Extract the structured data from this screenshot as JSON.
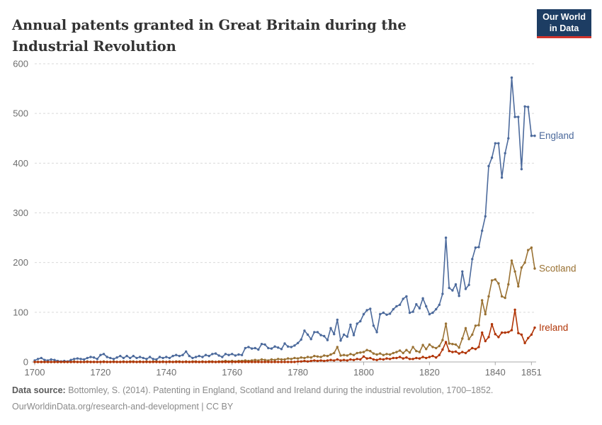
{
  "header": {
    "title": "Annual patents granted in Great Britain during the Industrial Revolution",
    "logo": {
      "line1": "Our World",
      "line2": "in Data"
    }
  },
  "chart_data": {
    "type": "line",
    "title": "Annual patents granted in Great Britain during the Industrial Revolution",
    "xlabel": "",
    "ylabel": "",
    "xlim": [
      1700,
      1852
    ],
    "ylim": [
      0,
      600
    ],
    "grid": "dashed-horizontal",
    "legend": "end-of-line-labels",
    "point_markers": true,
    "yticks": [
      0,
      100,
      200,
      300,
      400,
      500,
      600
    ],
    "xticks": [
      1700,
      1720,
      1740,
      1760,
      1780,
      1800,
      1820,
      1840,
      1851
    ],
    "x": [
      1700,
      1701,
      1702,
      1703,
      1704,
      1705,
      1706,
      1707,
      1708,
      1709,
      1710,
      1711,
      1712,
      1713,
      1714,
      1715,
      1716,
      1717,
      1718,
      1719,
      1720,
      1721,
      1722,
      1723,
      1724,
      1725,
      1726,
      1727,
      1728,
      1729,
      1730,
      1731,
      1732,
      1733,
      1734,
      1735,
      1736,
      1737,
      1738,
      1739,
      1740,
      1741,
      1742,
      1743,
      1744,
      1745,
      1746,
      1747,
      1748,
      1749,
      1750,
      1751,
      1752,
      1753,
      1754,
      1755,
      1756,
      1757,
      1758,
      1759,
      1760,
      1761,
      1762,
      1763,
      1764,
      1765,
      1766,
      1767,
      1768,
      1769,
      1770,
      1771,
      1772,
      1773,
      1774,
      1775,
      1776,
      1777,
      1778,
      1779,
      1780,
      1781,
      1782,
      1783,
      1784,
      1785,
      1786,
      1787,
      1788,
      1789,
      1790,
      1791,
      1792,
      1793,
      1794,
      1795,
      1796,
      1797,
      1798,
      1799,
      1800,
      1801,
      1802,
      1803,
      1804,
      1805,
      1806,
      1807,
      1808,
      1809,
      1810,
      1811,
      1812,
      1813,
      1814,
      1815,
      1816,
      1817,
      1818,
      1819,
      1820,
      1821,
      1822,
      1823,
      1824,
      1825,
      1826,
      1827,
      1828,
      1829,
      1830,
      1831,
      1832,
      1833,
      1834,
      1835,
      1836,
      1837,
      1838,
      1839,
      1840,
      1841,
      1842,
      1843,
      1844,
      1845,
      1846,
      1847,
      1848,
      1849,
      1850,
      1851,
      1852
    ],
    "series": [
      {
        "name": "England",
        "color": "#4C6A9C",
        "values": [
          3,
          6,
          8,
          4,
          3,
          5,
          4,
          2,
          1,
          2,
          1,
          4,
          6,
          7,
          6,
          5,
          8,
          10,
          9,
          6,
          14,
          16,
          10,
          8,
          6,
          9,
          12,
          8,
          12,
          8,
          12,
          8,
          10,
          8,
          6,
          10,
          6,
          5,
          10,
          8,
          10,
          8,
          12,
          14,
          12,
          14,
          21,
          12,
          8,
          10,
          12,
          10,
          14,
          12,
          16,
          17,
          13,
          10,
          16,
          14,
          16,
          13,
          15,
          14,
          28,
          30,
          27,
          28,
          25,
          36,
          35,
          28,
          27,
          31,
          29,
          26,
          37,
          31,
          30,
          33,
          38,
          45,
          63,
          55,
          46,
          60,
          60,
          54,
          52,
          44,
          68,
          56,
          85,
          43,
          55,
          51,
          75,
          54,
          77,
          82,
          96,
          104,
          107,
          73,
          60,
          96,
          99,
          95,
          97,
          106,
          112,
          115,
          127,
          132,
          99,
          101,
          116,
          108,
          128,
          112,
          96,
          99,
          106,
          115,
          137,
          250,
          149,
          144,
          156,
          133,
          182,
          147,
          155,
          207,
          230,
          231,
          264,
          293,
          394,
          411,
          440,
          440,
          371,
          420,
          450,
          572,
          493,
          493,
          388,
          514,
          513,
          455,
          455
        ]
      },
      {
        "name": "Scotland",
        "color": "#9A7234",
        "values": [
          0,
          0,
          0,
          0,
          0,
          0,
          0,
          0,
          0,
          0,
          0,
          0,
          1,
          0,
          0,
          0,
          1,
          0,
          0,
          0,
          0,
          1,
          0,
          0,
          1,
          0,
          0,
          1,
          0,
          1,
          1,
          0,
          1,
          0,
          1,
          0,
          1,
          1,
          0,
          1,
          0,
          1,
          0,
          1,
          1,
          0,
          1,
          0,
          1,
          1,
          0,
          1,
          0,
          1,
          1,
          0,
          1,
          1,
          2,
          1,
          2,
          1,
          2,
          2,
          3,
          2,
          3,
          4,
          3,
          5,
          4,
          3,
          5,
          4,
          6,
          5,
          5,
          7,
          6,
          8,
          7,
          9,
          8,
          10,
          9,
          12,
          11,
          10,
          13,
          12,
          15,
          18,
          30,
          13,
          14,
          13,
          16,
          14,
          18,
          19,
          20,
          24,
          22,
          17,
          15,
          17,
          14,
          16,
          15,
          18,
          20,
          23,
          18,
          24,
          19,
          30,
          22,
          20,
          34,
          26,
          35,
          30,
          28,
          32,
          44,
          77,
          37,
          36,
          35,
          29,
          47,
          68,
          46,
          55,
          73,
          74,
          124,
          96,
          132,
          164,
          166,
          158,
          132,
          129,
          156,
          204,
          182,
          152,
          190,
          200,
          225,
          230,
          188
        ]
      },
      {
        "name": "Ireland",
        "color": "#B13507",
        "values": [
          0,
          0,
          0,
          0,
          0,
          0,
          0,
          0,
          0,
          0,
          0,
          0,
          0,
          0,
          0,
          0,
          0,
          0,
          0,
          0,
          0,
          0,
          0,
          0,
          0,
          0,
          0,
          0,
          0,
          0,
          0,
          0,
          0,
          0,
          0,
          0,
          0,
          0,
          0,
          0,
          0,
          0,
          0,
          0,
          0,
          0,
          0,
          0,
          0,
          0,
          0,
          0,
          0,
          0,
          0,
          0,
          0,
          0,
          0,
          0,
          0,
          0,
          0,
          0,
          0,
          0,
          0,
          0,
          0,
          0,
          0,
          0,
          0,
          0,
          0,
          0,
          0,
          0,
          0,
          0,
          1,
          1,
          2,
          1,
          2,
          3,
          2,
          3,
          2,
          3,
          4,
          3,
          5,
          3,
          4,
          3,
          5,
          4,
          6,
          5,
          11,
          7,
          8,
          5,
          4,
          6,
          5,
          7,
          6,
          8,
          8,
          10,
          7,
          9,
          6,
          6,
          8,
          7,
          10,
          8,
          10,
          12,
          9,
          14,
          25,
          40,
          22,
          20,
          21,
          17,
          20,
          18,
          23,
          28,
          26,
          30,
          59,
          42,
          50,
          76,
          56,
          50,
          59,
          59,
          60,
          64,
          105,
          58,
          55,
          38,
          48,
          55,
          69
        ]
      }
    ]
  },
  "footer": {
    "source_label": "Data source:",
    "source_text": " Bottomley, S. (2014). Patenting in England, Scotland and Ireland during the industrial revolution, 1700–1852.",
    "link_line": "OurWorldinData.org/research-and-development | CC BY"
  },
  "colors": {
    "england": "#4C6A9C",
    "scotland": "#9A7234",
    "ireland": "#B13507",
    "grid": "#d9d9d9",
    "axis": "#a8a8a8",
    "tick_text": "#6e6e6e",
    "logo_bg": "#1d3d63",
    "logo_bar": "#d0342c"
  }
}
